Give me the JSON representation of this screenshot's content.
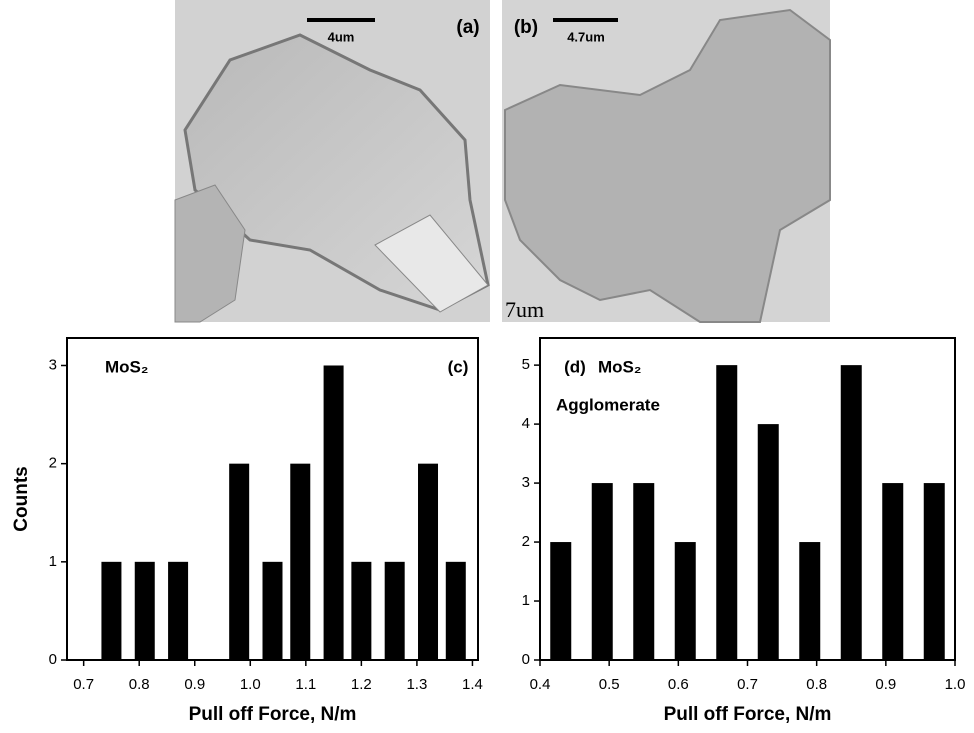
{
  "images": [
    {
      "label": "(a)",
      "scale": "4um"
    },
    {
      "label": "(b)",
      "scale": "4.7um",
      "caption": "7um"
    }
  ],
  "chart_data": [
    {
      "type": "bar",
      "panel": "(c)",
      "annotations": [
        "MoS₂"
      ],
      "ylabel": "Counts",
      "xlabel": "Pull off Force, N/m",
      "x": [
        0.75,
        0.81,
        0.87,
        0.92,
        0.98,
        1.04,
        1.09,
        1.15,
        1.2,
        1.26,
        1.32,
        1.37
      ],
      "values": [
        1,
        1,
        1,
        0,
        2,
        1,
        2,
        3,
        1,
        1,
        2,
        1
      ],
      "color": "#000000",
      "xlim": [
        0.67,
        1.41
      ],
      "xticks": [
        0.7,
        0.8,
        0.9,
        {
          "value": 1,
          "label": "1.0"
        },
        1.1,
        1.2,
        1.3,
        1.4
      ],
      "ylim": [
        0,
        3.28
      ],
      "yticks": [
        0,
        1,
        2,
        3
      ]
    },
    {
      "type": "bar",
      "panel": "(d)",
      "annotations": [
        "MoS₂",
        "Agglomerate"
      ],
      "xlabel": "Pull off Force, N/m",
      "x": [
        0.43,
        0.49,
        0.55,
        0.61,
        0.67,
        0.73,
        0.79,
        0.85,
        0.91,
        0.97
      ],
      "values": [
        2,
        3,
        3,
        2,
        5,
        4,
        2,
        5,
        3,
        3
      ],
      "color": "#000000",
      "xlim": [
        0.4,
        1.0
      ],
      "xticks": [
        0.4,
        0.5,
        0.6,
        0.7,
        0.8,
        0.9,
        {
          "value": 1,
          "label": "1.0"
        }
      ],
      "ylim": [
        0,
        5.46
      ],
      "yticks": [
        0,
        1,
        2,
        3,
        4,
        5
      ]
    }
  ]
}
